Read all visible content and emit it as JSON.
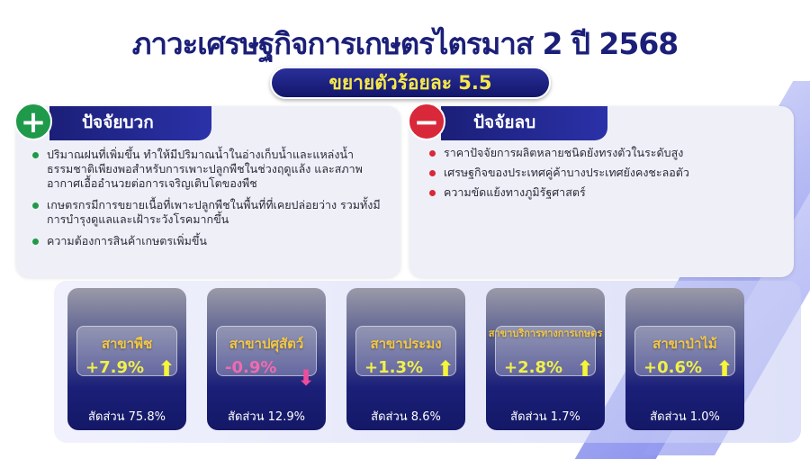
{
  "title": "ภาวะเศรษฐกิจการเกษตรไตรมาส 2 ปี 2568",
  "subtitle": "ขยายตัวร้อยละ 5.5",
  "positive": {
    "icon": "plus-icon",
    "heading": "ปัจจัยบวก",
    "color": "#1f9a4a",
    "items": [
      "ปริมาณฝนที่เพิ่มขึ้น ทำให้มีปริมาณน้ำในอ่างเก็บน้ำและแหล่งน้ำธรรมชาติเพียงพอสำหรับการเพาะปลูกพืชในช่วงฤดูแล้ง และสภาพอากาศเอื้ออำนวยต่อการเจริญเติบโตของพืช",
      "เกษตรกรมีการขยายเนื้อที่เพาะปลูกพืชในพื้นที่ที่เคยปล่อยว่าง รวมทั้งมีการบำรุงดูแลและเฝ้าระวังโรคมากขึ้น",
      "ความต้องการสินค้าเกษตรเพิ่มขึ้น"
    ]
  },
  "negative": {
    "icon": "minus-icon",
    "heading": "ปัจจัยลบ",
    "color": "#d8283a",
    "items": [
      "ราคาปัจจัยการผลิตหลายชนิดยังทรงตัวในระดับสูง",
      "เศรษฐกิจของประเทศคู่ค้าบางประเทศยังคงชะลอตัว",
      "ความขัดแย้งทางภูมิรัฐศาสตร์"
    ]
  },
  "sectors": [
    {
      "name": "สาขาพืช",
      "growth": "+7.9%",
      "direction": "up",
      "share": "สัดส่วน 75.8%"
    },
    {
      "name": "สาขาปศุสัตว์",
      "growth": "-0.9%",
      "direction": "down",
      "share": "สัดส่วน 12.9%"
    },
    {
      "name": "สาขาประมง",
      "growth": "+1.3%",
      "direction": "up",
      "share": "สัดส่วน 8.6%"
    },
    {
      "name": "สาขาบริการทางการเกษตร",
      "growth": "+2.8%",
      "direction": "up",
      "share": "สัดส่วน 1.7%"
    },
    {
      "name": "สาขาป่าไม้",
      "growth": "+0.6%",
      "direction": "up",
      "share": "สัดส่วน 1.0%"
    }
  ]
}
